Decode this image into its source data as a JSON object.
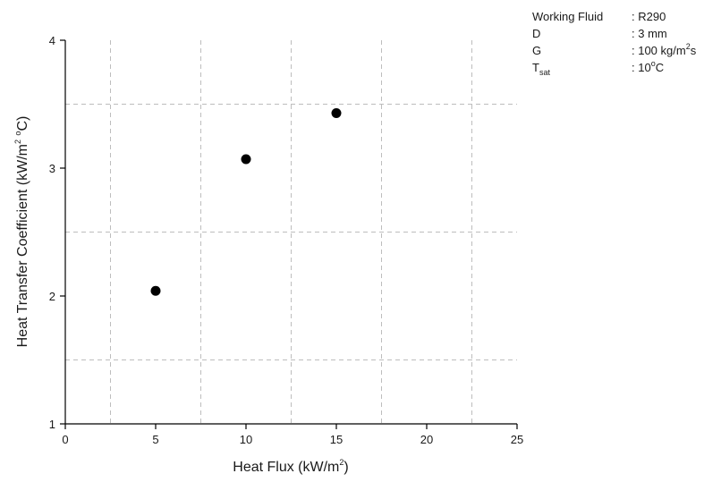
{
  "chart_data": {
    "type": "scatter",
    "title": "",
    "xlabel": {
      "prefix": "Heat Flux (kW/m",
      "sup": "2",
      "suffix": ")"
    },
    "ylabel": {
      "prefix": "Heat Transfer Coefficient (kW/m",
      "sup": "2",
      "mid": " ",
      "sup2": "o",
      "suffix": "C)"
    },
    "xlim": [
      0,
      25
    ],
    "ylim": [
      1,
      4
    ],
    "xticks": [
      0,
      5,
      10,
      15,
      20,
      25
    ],
    "yticks": [
      1,
      2,
      3,
      4
    ],
    "grid": true,
    "grid_style": "dashed",
    "series": [
      {
        "color": "#000000",
        "x": [
          5,
          10,
          15
        ],
        "y": [
          2.04,
          3.07,
          3.43
        ]
      }
    ]
  },
  "annotations": [
    {
      "label": "Working Fluid",
      "label_sub": "",
      "value": ": R290",
      "value_sup": "",
      "value_tail": ""
    },
    {
      "label": "D",
      "label_sub": "",
      "value": ": 3 mm",
      "value_sup": "",
      "value_tail": ""
    },
    {
      "label": "G",
      "label_sub": "",
      "value": ": 100 kg/m",
      "value_sup": "2",
      "value_tail": "s"
    },
    {
      "label": "T",
      "label_sub": "sat",
      "value": ": 10",
      "value_sup": "o",
      "value_tail": "C"
    }
  ]
}
